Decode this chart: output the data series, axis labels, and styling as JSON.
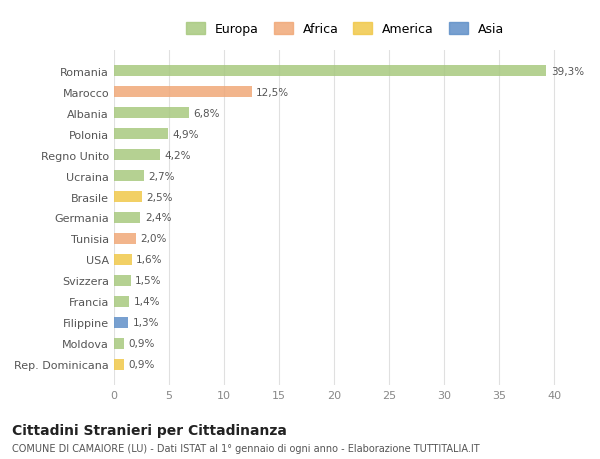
{
  "countries": [
    "Romania",
    "Marocco",
    "Albania",
    "Polonia",
    "Regno Unito",
    "Ucraina",
    "Brasile",
    "Germania",
    "Tunisia",
    "USA",
    "Svizzera",
    "Francia",
    "Filippine",
    "Moldova",
    "Rep. Dominicana"
  ],
  "values": [
    39.3,
    12.5,
    6.8,
    4.9,
    4.2,
    2.7,
    2.5,
    2.4,
    2.0,
    1.6,
    1.5,
    1.4,
    1.3,
    0.9,
    0.9
  ],
  "labels": [
    "39,3%",
    "12,5%",
    "6,8%",
    "4,9%",
    "4,2%",
    "2,7%",
    "2,5%",
    "2,4%",
    "2,0%",
    "1,6%",
    "1,5%",
    "1,4%",
    "1,3%",
    "0,9%",
    "0,9%"
  ],
  "continents": [
    "Europa",
    "Africa",
    "Europa",
    "Europa",
    "Europa",
    "Europa",
    "America",
    "Europa",
    "Africa",
    "America",
    "Europa",
    "Europa",
    "Asia",
    "Europa",
    "America"
  ],
  "continent_colors": {
    "Europa": "#a8c97f",
    "Africa": "#f0a878",
    "America": "#f0c84a",
    "Asia": "#6090c8"
  },
  "legend_order": [
    "Europa",
    "Africa",
    "America",
    "Asia"
  ],
  "title": "Cittadini Stranieri per Cittadinanza",
  "subtitle": "COMUNE DI CAMAIORE (LU) - Dati ISTAT al 1° gennaio di ogni anno - Elaborazione TUTTITALIA.IT",
  "xlim": [
    0,
    42
  ],
  "xticks": [
    0,
    5,
    10,
    15,
    20,
    25,
    30,
    35,
    40
  ],
  "background_color": "#ffffff",
  "grid_color": "#e0e0e0"
}
